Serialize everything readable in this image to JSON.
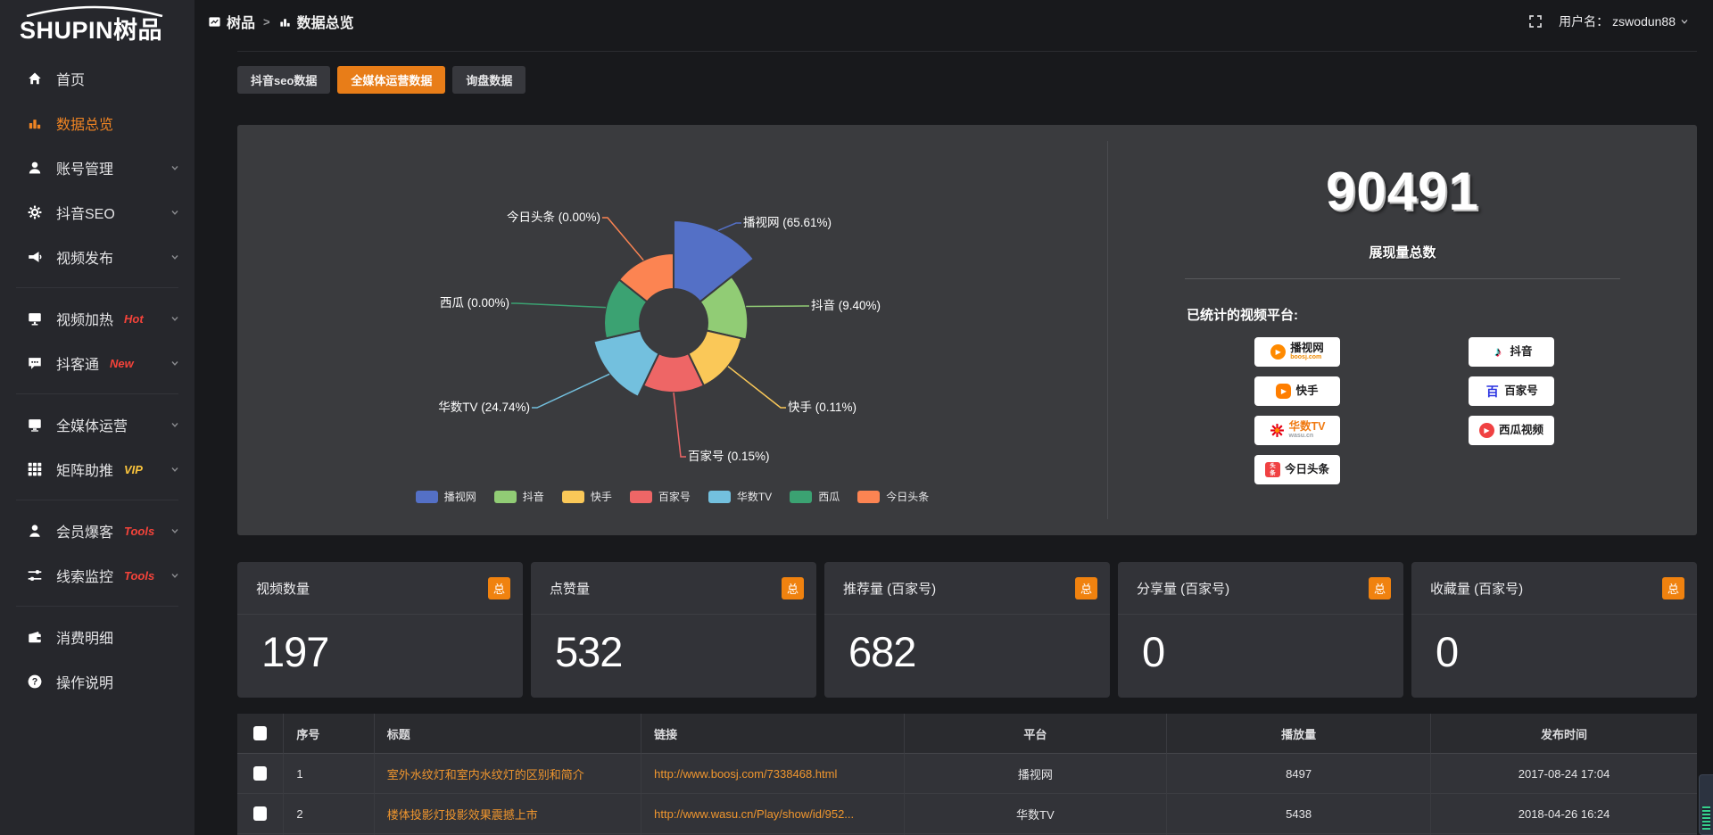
{
  "app": {
    "brand_en": "SHUPIN",
    "brand_cn": "树品"
  },
  "topbar": {
    "breadcrumb_root": "树品",
    "separator": ">",
    "breadcrumb_current": "数据总览",
    "username_label": "用户名：",
    "username": "zswodun88"
  },
  "sidebar": {
    "items": [
      {
        "key": "home",
        "label": "首页",
        "icon": "home-icon"
      },
      {
        "key": "data-overview",
        "label": "数据总览",
        "icon": "bar-chart-icon",
        "active": true
      },
      {
        "key": "account-management",
        "label": "账号管理",
        "icon": "user-icon",
        "chevron": true
      },
      {
        "key": "douyin-seo",
        "label": "抖音SEO",
        "icon": "gear-icon",
        "chevron": true
      },
      {
        "key": "video-publish",
        "label": "视频发布",
        "icon": "megaphone-icon",
        "chevron": true
      },
      {
        "divider": true
      },
      {
        "key": "video-heat",
        "label": "视频加热",
        "icon": "monitor-icon",
        "tag": "Hot",
        "tag_color": "#f4433a",
        "chevron": true
      },
      {
        "key": "douketong",
        "label": "抖客通",
        "icon": "chat-icon",
        "tag": "New",
        "tag_color": "#f4433a",
        "chevron": true
      },
      {
        "divider": true
      },
      {
        "key": "omni-media",
        "label": "全媒体运营",
        "icon": "display-icon",
        "chevron": true
      },
      {
        "key": "matrix-boost",
        "label": "矩阵助推",
        "icon": "grid-icon",
        "tag": "VIP",
        "tag_color": "#fac43c",
        "chevron": true
      },
      {
        "divider": true
      },
      {
        "key": "member-leads",
        "label": "会员爆客",
        "icon": "member-icon",
        "tag": "Tools",
        "tag_color": "#f4433a",
        "chevron": true
      },
      {
        "key": "lead-monitor",
        "label": "线索监控",
        "icon": "sliders-icon",
        "tag": "Tools",
        "tag_color": "#f4433a",
        "chevron": true
      },
      {
        "divider": true
      },
      {
        "key": "expense-detail",
        "label": "消费明细",
        "icon": "wallet-icon"
      },
      {
        "key": "instructions",
        "label": "操作说明",
        "icon": "question-icon"
      }
    ]
  },
  "tabs": [
    {
      "key": "douyin-seo-data",
      "label": "抖音seo数据",
      "active": false
    },
    {
      "key": "omni-media-data",
      "label": "全媒体运营数据",
      "active": true
    },
    {
      "key": "inquiry-data",
      "label": "询盘数据",
      "active": false
    }
  ],
  "chart_data": {
    "type": "pie",
    "style": "nightingale-rose",
    "direction": "clockwise",
    "start_angle_deg_from_north": 0,
    "legend_position": "bottom",
    "label_format": "{name} ({percent}%)",
    "series": [
      {
        "name": "播视网",
        "percent": 65.61,
        "color": "#5470c6"
      },
      {
        "name": "抖音",
        "percent": 9.4,
        "color": "#91cc75"
      },
      {
        "name": "快手",
        "percent": 0.11,
        "color": "#fac858"
      },
      {
        "name": "百家号",
        "percent": 0.15,
        "color": "#ee6666"
      },
      {
        "name": "华数TV",
        "percent": 24.74,
        "color": "#73c0de"
      },
      {
        "name": "西瓜",
        "percent": 0.0,
        "color": "#3ba272"
      },
      {
        "name": "今日头条",
        "percent": 0.0,
        "color": "#fc8452"
      }
    ]
  },
  "summary": {
    "total_value": "90491",
    "total_label": "展现量总数",
    "platforms_label": "已统计的视频平台:",
    "platform_badges": [
      {
        "key": "boosj",
        "name": "播视网",
        "domain": "boosj.com",
        "column": 1
      },
      {
        "key": "kuaishou",
        "name": "快手",
        "column": 1
      },
      {
        "key": "wasu",
        "name": "华数TV",
        "domain": "wasu.cn",
        "column": 1
      },
      {
        "key": "toutiao",
        "name": "今日头条",
        "column": 1
      },
      {
        "key": "douyin",
        "name": "抖音",
        "column": 2
      },
      {
        "key": "baijiahao",
        "name": "百家号",
        "column": 2
      },
      {
        "key": "xigua",
        "name": "西瓜视频",
        "column": 2
      }
    ]
  },
  "stat_cards": [
    {
      "key": "video-count",
      "title": "视频数量",
      "badge": "总",
      "value": "197"
    },
    {
      "key": "like-count",
      "title": "点赞量",
      "badge": "总",
      "value": "532"
    },
    {
      "key": "recommend-count",
      "title": "推荐量 (百家号)",
      "badge": "总",
      "value": "682"
    },
    {
      "key": "share-count",
      "title": "分享量 (百家号)",
      "badge": "总",
      "value": "0"
    },
    {
      "key": "favorite-count",
      "title": "收藏量 (百家号)",
      "badge": "总",
      "value": "0"
    }
  ],
  "table": {
    "headers": [
      "序号",
      "标题",
      "链接",
      "平台",
      "播放量",
      "发布时间"
    ],
    "rows": [
      {
        "index": "1",
        "title": "室外水纹灯和室内水纹灯的区别和简介",
        "link": "http://www.boosj.com/7338468.html",
        "platform": "播视网",
        "views": "8497",
        "publish_time": "2017-08-24 17:04"
      },
      {
        "index": "2",
        "title": "楼体投影灯投影效果震撼上市",
        "link": "http://www.wasu.cn/Play/show/id/952...",
        "platform": "华数TV",
        "views": "5438",
        "publish_time": "2018-04-26 16:24"
      }
    ]
  },
  "colors": {
    "accent_orange": "#e87d18",
    "sidebar_active": "#f08423",
    "link_orange": "#f0962e",
    "badge_orange": "#f0820f"
  }
}
